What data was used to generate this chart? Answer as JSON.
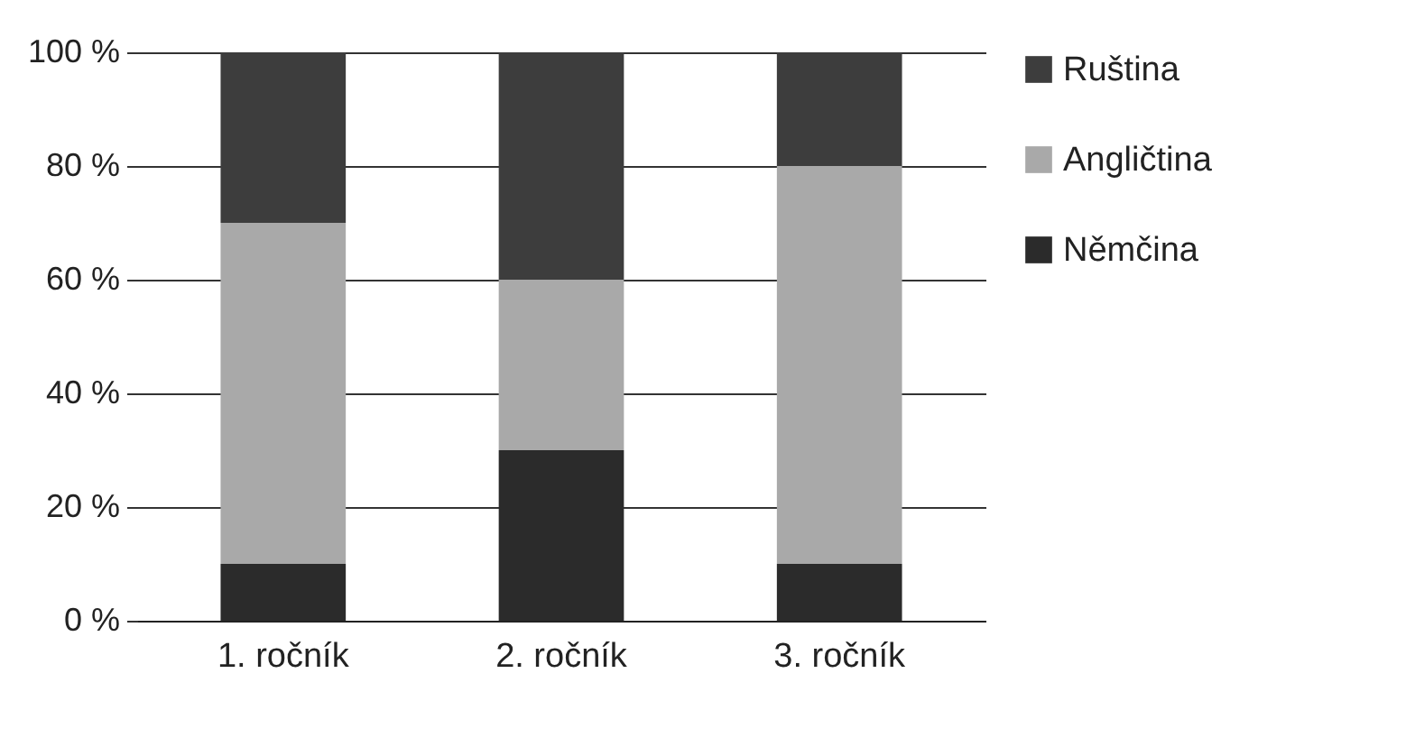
{
  "chart_data": {
    "type": "bar",
    "stacked": true,
    "categories": [
      "1. ročník",
      "2. ročník",
      "3. ročník"
    ],
    "series": [
      {
        "name": "Němčina",
        "color": "#2b2b2b",
        "values": [
          10,
          30,
          10
        ]
      },
      {
        "name": "Angličtina",
        "color": "#a9a9a9",
        "values": [
          60,
          30,
          70
        ]
      },
      {
        "name": "Ruština",
        "color": "#3d3d3d",
        "values": [
          30,
          40,
          20
        ]
      }
    ],
    "ylim": [
      0,
      100
    ],
    "yticks": [
      {
        "value": 0,
        "label": "0 %"
      },
      {
        "value": 20,
        "label": "20 %"
      },
      {
        "value": 40,
        "label": "40 %"
      },
      {
        "value": 60,
        "label": "60 %"
      },
      {
        "value": 80,
        "label": "80 %"
      },
      {
        "value": 100,
        "label": "100 %"
      }
    ],
    "grid": "y",
    "legend": "right"
  }
}
